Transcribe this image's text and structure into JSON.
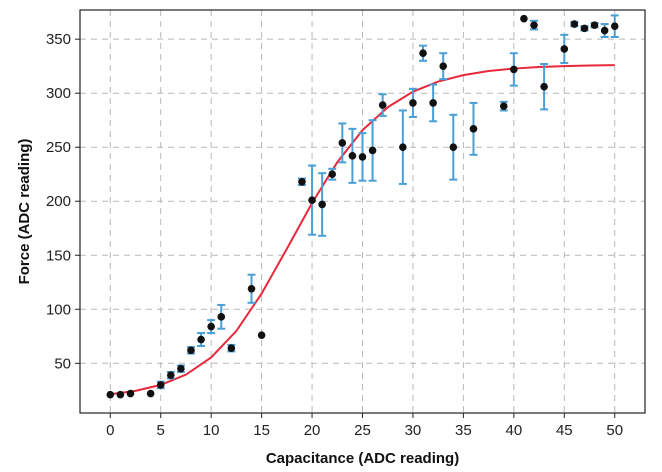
{
  "chart_data": {
    "type": "scatter",
    "title": "",
    "xlabel": "Capacitance (ADC reading)",
    "ylabel": "Force (ADC reading)",
    "xlim": [
      -3,
      53
    ],
    "ylim": [
      4,
      377
    ],
    "xticks": [
      0,
      5,
      10,
      15,
      20,
      25,
      30,
      35,
      40,
      45,
      50
    ],
    "yticks": [
      50,
      100,
      150,
      200,
      250,
      300,
      350
    ],
    "grid": true,
    "legend": "none",
    "colors": {
      "points": "#111111",
      "error_bars": "#4a9fd6",
      "fit": "#e8283c",
      "grid": "#b8b8b8"
    },
    "series": [
      {
        "type": "scatter",
        "x": [
          0,
          1,
          2,
          4,
          5,
          6,
          7,
          8,
          9,
          10,
          11,
          12,
          14,
          15,
          19,
          20,
          21,
          22,
          23,
          24,
          25,
          26,
          27,
          29,
          30,
          31,
          32,
          33,
          34,
          36,
          39,
          40,
          41,
          42,
          43,
          45,
          46,
          47,
          48,
          49,
          50
        ],
        "y": [
          21,
          21,
          22,
          22,
          30,
          39,
          45,
          62,
          72,
          84,
          93,
          64,
          119,
          76,
          218,
          201,
          197,
          225,
          254,
          242,
          241,
          247,
          289,
          250,
          291,
          337,
          291,
          325,
          250,
          267,
          288,
          322,
          369,
          363,
          306,
          341,
          364,
          360,
          363,
          358,
          362
        ],
        "error": [
          0,
          0,
          0,
          0,
          3,
          3,
          3,
          3,
          6,
          6,
          11,
          3,
          13,
          0,
          3,
          32,
          29,
          5,
          18,
          25,
          22,
          28,
          10,
          34,
          13,
          7,
          17,
          12,
          30,
          24,
          4,
          15,
          0,
          4,
          21,
          13,
          2,
          2,
          2,
          6,
          10
        ]
      },
      {
        "type": "line",
        "x": [
          0,
          2.5,
          5,
          7.5,
          10,
          12.5,
          15,
          17.5,
          20,
          22.5,
          25,
          27.5,
          30,
          32.5,
          35,
          37.5,
          40,
          42.5,
          45,
          47.5,
          50
        ],
        "y": [
          21.4,
          24.5,
          30.0,
          39.5,
          55.4,
          80.0,
          114.5,
          155.9,
          198.4,
          236.1,
          265.8,
          287.0,
          301.4,
          310.8,
          316.7,
          320.5,
          322.8,
          324.2,
          325.1,
          325.6,
          326.0
        ]
      }
    ]
  }
}
